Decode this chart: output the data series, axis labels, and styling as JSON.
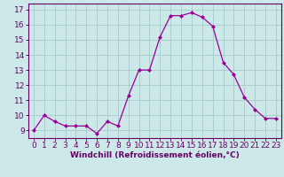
{
  "x": [
    0,
    1,
    2,
    3,
    4,
    5,
    6,
    7,
    8,
    9,
    10,
    11,
    12,
    13,
    14,
    15,
    16,
    17,
    18,
    19,
    20,
    21,
    22,
    23
  ],
  "y": [
    9.0,
    10.0,
    9.6,
    9.3,
    9.3,
    9.3,
    8.8,
    9.6,
    9.3,
    11.3,
    13.0,
    13.0,
    15.2,
    16.6,
    16.6,
    16.8,
    16.5,
    15.9,
    13.5,
    12.7,
    11.2,
    10.4,
    9.8,
    9.8
  ],
  "line_color": "#990099",
  "marker": "D",
  "marker_size": 2.0,
  "bg_color": "#cce8e8",
  "grid_color": "#aacfcf",
  "xlabel": "Windchill (Refroidissement éolien,°C)",
  "xlabel_fontsize": 6.5,
  "tick_fontsize": 6.5,
  "ylabel_ticks": [
    9,
    10,
    11,
    12,
    13,
    14,
    15,
    16,
    17
  ],
  "ylim": [
    8.5,
    17.4
  ],
  "xlim": [
    -0.5,
    23.5
  ],
  "spine_color": "#660066",
  "text_color": "#660066"
}
